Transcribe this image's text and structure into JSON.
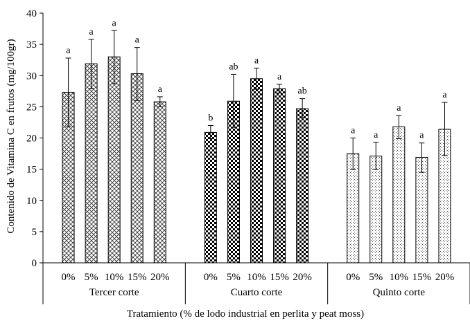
{
  "chart_data": {
    "type": "bar",
    "title": "",
    "xlabel": "Tratamiento (% de lodo industrial en perlita y peat moss)",
    "ylabel": "Contenido de Vitamina C en frutos (mg/100gr)",
    "ylim": [
      0,
      40
    ],
    "yticks": [
      "0",
      "5",
      "10",
      "15",
      "20",
      "25",
      "30",
      "35",
      "40"
    ],
    "grid": false,
    "legend": "none",
    "groups": [
      {
        "name": "Tercer corte",
        "pattern": "crosshatch",
        "categories": [
          "0%",
          "5%",
          "10%",
          "15%",
          "20%"
        ],
        "values": [
          27.3,
          31.9,
          33.0,
          30.3,
          25.8
        ],
        "err_low": [
          21.8,
          27.9,
          28.7,
          26.0,
          25.0
        ],
        "err_high": [
          32.8,
          35.8,
          37.2,
          34.5,
          26.6
        ],
        "letters": [
          "a",
          "a",
          "a",
          "a",
          "a"
        ]
      },
      {
        "name": "Cuarto corte",
        "pattern": "checker",
        "categories": [
          "0%",
          "5%",
          "10%",
          "15%",
          "20%"
        ],
        "values": [
          20.9,
          25.9,
          29.5,
          27.9,
          24.7
        ],
        "err_low": [
          19.9,
          21.7,
          27.8,
          27.2,
          23.3
        ],
        "err_high": [
          22.0,
          30.2,
          31.2,
          28.6,
          26.3
        ],
        "letters": [
          "b",
          "ab",
          "a",
          "a",
          "ab"
        ]
      },
      {
        "name": "Quinto corte",
        "pattern": "dotted",
        "categories": [
          "0%",
          "5%",
          "10%",
          "15%",
          "20%"
        ],
        "values": [
          17.5,
          17.1,
          21.8,
          16.9,
          21.4
        ],
        "err_low": [
          14.9,
          14.9,
          19.9,
          14.5,
          17.2
        ],
        "err_high": [
          20.0,
          19.3,
          23.6,
          19.2,
          25.7
        ],
        "letters": [
          "a",
          "a",
          "a",
          "a",
          "a"
        ]
      }
    ]
  }
}
